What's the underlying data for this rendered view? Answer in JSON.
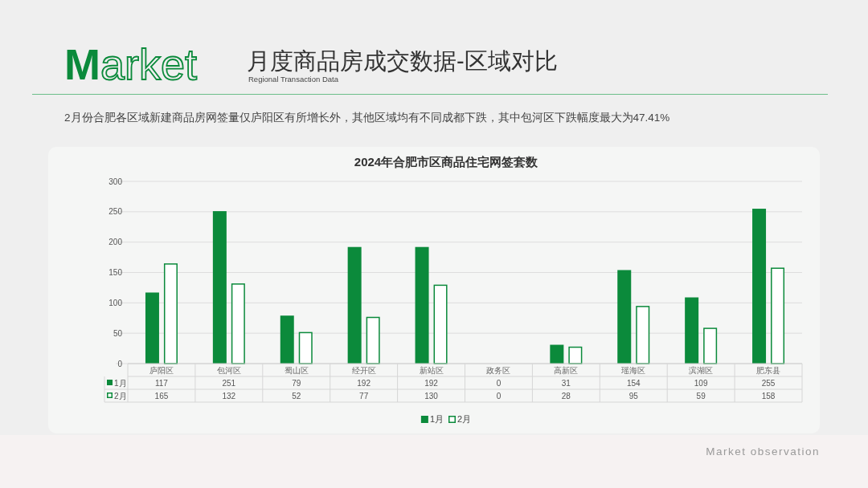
{
  "chart_data": {
    "type": "bar",
    "title": "2024年合肥市区商品住宅网签套数",
    "subtitle": "Regional Transaction Data",
    "annotations": [
      "Market",
      "2月份合肥各区域新建商品房网签量仅庐阳区有所增长外，其他区域均有不同成都下跌，其中包河区下跌幅度最大为47.41%",
      "Market observation",
      "月度商品房成交数据-区域对比"
    ],
    "categories": [
      "庐阳区",
      "包河区",
      "蜀山区",
      "经开区",
      "新站区",
      "政务区",
      "高新区",
      "瑶海区",
      "滨湖区",
      "肥东县"
    ],
    "series": [
      {
        "name": "1月",
        "color": "#0b8a3b",
        "values": [
          117,
          251,
          79,
          192,
          192,
          0,
          31,
          154,
          109,
          255
        ]
      },
      {
        "name": "2月",
        "color": "#0b8a3b",
        "values": [
          165,
          132,
          52,
          77,
          130,
          0,
          28,
          95,
          59,
          158
        ]
      }
    ],
    "ylim": [
      0,
      300
    ],
    "yticks": [
      0,
      50,
      100,
      150,
      200,
      250,
      300
    ],
    "grid": "y",
    "legend": "bottom",
    "data_labels": true
  }
}
